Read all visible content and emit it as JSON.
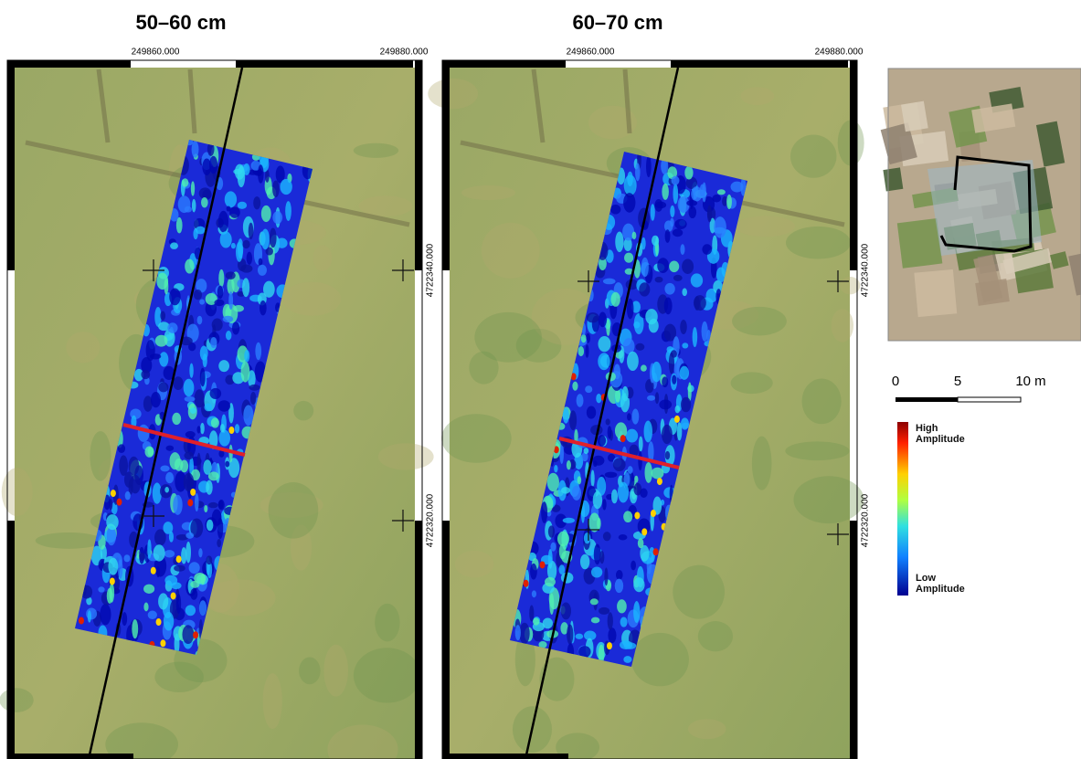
{
  "panels": [
    {
      "title": "50–60 cm",
      "x_labels": [
        "249860.000",
        "249880.000"
      ],
      "y_labels": [
        "4722340.000",
        "4722320.000"
      ]
    },
    {
      "title": "60–70 cm",
      "x_labels": [
        "249860.000",
        "249880.000"
      ],
      "y_labels": [
        "4722340.000",
        "4722320.000"
      ]
    }
  ],
  "scale_bar": {
    "labels": [
      "0",
      "5",
      "10 m"
    ]
  },
  "legend": {
    "high": "High Amplitude",
    "low": "Low Amplitude"
  }
}
